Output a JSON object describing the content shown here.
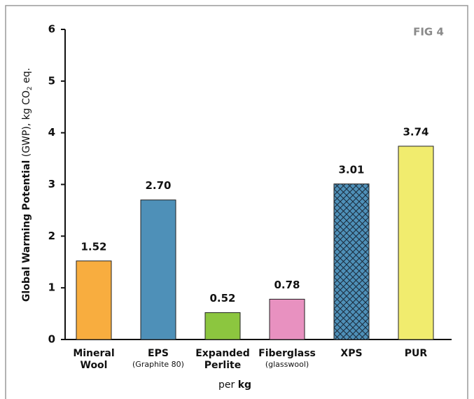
{
  "chart_data": {
    "type": "bar",
    "fig_label": "FIG 4",
    "y_label": [
      "Global Warming Potential",
      "(GWP), kg CO",
      "2",
      "eq."
    ],
    "x_label": [
      "per",
      "kg"
    ],
    "categories": [
      "Mineral Wool",
      "EPS",
      "Expanded Perlite",
      "Fiberglass",
      "XPS",
      "PUR"
    ],
    "subtitles": [
      null,
      "(Graphite 80)",
      null,
      "(glasswool)",
      null,
      null
    ],
    "values": [
      1.52,
      2.7,
      0.52,
      0.78,
      3.01,
      3.74
    ],
    "value_labels": [
      "1.52",
      "2.70",
      "0.52",
      "0.78",
      "3.01",
      "3.74"
    ],
    "colors": [
      "#f8ad3f",
      "#4e90b8",
      "#8cc63f",
      "#e891c0",
      "#4e90b8",
      "#f1ec6e"
    ],
    "patterns": [
      null,
      null,
      null,
      null,
      "crosshatch",
      null
    ],
    "ylim": [
      0,
      6
    ],
    "yticks": [
      0,
      1,
      2,
      3,
      4,
      5,
      6
    ],
    "grid": false
  }
}
